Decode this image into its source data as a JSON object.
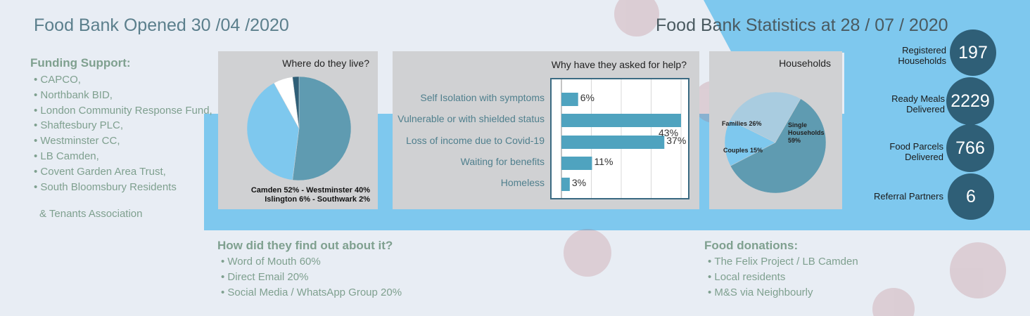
{
  "title_left": "Food Bank Opened 30 /04 /2020",
  "title_right": "Food Bank Statistics at 28 / 07 / 2020",
  "funding": {
    "heading": "Funding Support:",
    "items": [
      "CAPCO,",
      "Northbank BID,",
      "London Community Response Fund,",
      "Shaftesbury PLC,",
      "Westminster CC,",
      "LB Camden,",
      "Covent Garden Area Trust,",
      "South Bloomsbury Residents"
    ],
    "continuation": "& Tenants Association"
  },
  "find_out": {
    "heading": "How did they find out about it?",
    "items": [
      "Word of Mouth 60%",
      "Direct Email 20%",
      "Social Media / WhatsApp Group 20%"
    ]
  },
  "donations": {
    "heading": "Food donations:",
    "items": [
      "The Felix Project / LB Camden",
      "Local residents",
      "M&S via Neighbourly"
    ]
  },
  "stats": [
    {
      "label": "Registered Households",
      "value": "197"
    },
    {
      "label": "Ready Meals Delivered",
      "value": "2229"
    },
    {
      "label": "Food Parcels Delivered",
      "value": "766"
    },
    {
      "label": "Referral Partners",
      "value": "6"
    }
  ],
  "colors": {
    "bg": "#e8edf4",
    "band": "#7ec8ee",
    "dark_circle": "#2f5f77",
    "bar": "#4fa3bf",
    "green_text": "#7fa08f",
    "title_text": "#5b7f8c"
  },
  "chart_data": [
    {
      "type": "pie",
      "title": "Where do they live?",
      "categories": [
        "Camden",
        "Westminster",
        "Islington",
        "Southwark"
      ],
      "values": [
        52,
        40,
        6,
        2
      ],
      "colors": [
        "#5f9bb1",
        "#7ec8ee",
        "#ffffff",
        "#2f5f77"
      ],
      "legend_lines": [
        "Camden 52% - Westminster 40%",
        "Islington 6% - Southwark 2%"
      ]
    },
    {
      "type": "bar",
      "orientation": "horizontal",
      "title": "Why have they asked for help?",
      "categories": [
        "Self Isolation with symptoms",
        "Vulnerable or with shielded status",
        "Loss of income due to Covid-19",
        "Waiting for benefits",
        "Homeless"
      ],
      "values": [
        6,
        43,
        37,
        11,
        3
      ],
      "value_labels": [
        "6%",
        "43%",
        "37%",
        "11%",
        "3%"
      ],
      "xlim": [
        0,
        43
      ],
      "grid": true
    },
    {
      "type": "pie",
      "title": "Households",
      "categories": [
        "Single Households",
        "Couples",
        "Families"
      ],
      "values": [
        59,
        15,
        26
      ],
      "labels": [
        [
          "Single",
          "Households",
          "59%"
        ],
        [
          "Couples 15%"
        ],
        [
          "Families 26%"
        ]
      ],
      "colors": [
        "#5f9bb1",
        "#7ec8ee",
        "#a9cce0"
      ]
    }
  ]
}
